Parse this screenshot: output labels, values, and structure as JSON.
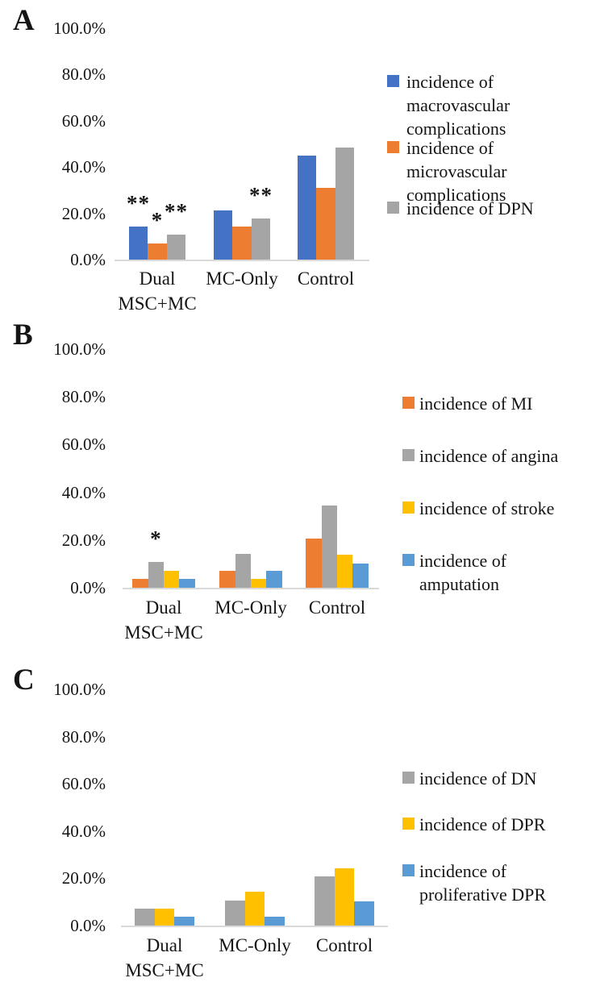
{
  "figure": {
    "background": "#ffffff",
    "colors": {
      "blue": "#4472C4",
      "orange": "#ED7D31",
      "gray": "#A5A5A5",
      "yellow": "#FFC000",
      "light_blue": "#5B9BD5",
      "axis_line": "#D9D9D9",
      "text": "#151515"
    }
  },
  "y_axis": {
    "ticks": [
      "100.0%",
      "80.0%",
      "60.0%",
      "40.0%",
      "20.0%",
      "0.0%"
    ],
    "range": [
      0,
      100
    ],
    "grid": "off"
  },
  "x_axis": {
    "categories": [
      "Dual MSC+MC",
      "MC-Only",
      "Control"
    ],
    "category_lines": [
      [
        "Dual",
        "MSC+MC"
      ],
      [
        "MC-Only"
      ],
      [
        "Control"
      ]
    ]
  },
  "chart_data": [
    {
      "panel": "A",
      "type": "bar",
      "title": "",
      "xlabel": "",
      "ylabel": "",
      "ylim": [
        0,
        100
      ],
      "legend_position": "right",
      "categories": [
        "Dual MSC+MC",
        "MC-Only",
        "Control"
      ],
      "series": [
        {
          "name": "incidence of macrovascular complications",
          "color": "#4472C4",
          "values": [
            14.3,
            21.4,
            44.8
          ]
        },
        {
          "name": "incidence of microvascular complications",
          "color": "#ED7D31",
          "values": [
            7.1,
            14.3,
            31.0
          ]
        },
        {
          "name": "incidence of DPN",
          "color": "#A5A5A5",
          "values": [
            10.7,
            17.9,
            48.3
          ]
        }
      ],
      "legend_lines": [
        [
          "incidence of",
          "macrovascular",
          "complications"
        ],
        [
          "incidence of",
          "microvascular",
          "complications"
        ],
        [
          "incidence of DPN"
        ]
      ],
      "annotations": [
        {
          "category": 0,
          "series": 0,
          "text": "**"
        },
        {
          "category": 0,
          "series": 1,
          "text": "*"
        },
        {
          "category": 0,
          "series": 2,
          "text": "**"
        },
        {
          "category": 1,
          "series": 2,
          "text": "**"
        }
      ]
    },
    {
      "panel": "B",
      "type": "bar",
      "title": "",
      "xlabel": "",
      "ylabel": "",
      "ylim": [
        0,
        100
      ],
      "legend_position": "right",
      "categories": [
        "Dual MSC+MC",
        "MC-Only",
        "Control"
      ],
      "series": [
        {
          "name": "incidence of MI",
          "color": "#ED7D31",
          "values": [
            3.6,
            7.1,
            20.7
          ]
        },
        {
          "name": "incidence of angina",
          "color": "#A5A5A5",
          "values": [
            10.7,
            14.3,
            34.5
          ]
        },
        {
          "name": "incidence of stroke",
          "color": "#FFC000",
          "values": [
            7.1,
            3.6,
            13.8
          ]
        },
        {
          "name": "incidence of amputation",
          "color": "#5B9BD5",
          "values": [
            3.6,
            7.1,
            10.3
          ]
        }
      ],
      "legend_lines": [
        [
          "incidence of MI"
        ],
        [
          "incidence of angina"
        ],
        [
          "incidence of stroke"
        ],
        [
          "incidence of",
          "amputation"
        ]
      ],
      "annotations": [
        {
          "category": 0,
          "series": 1,
          "text": "*"
        }
      ]
    },
    {
      "panel": "C",
      "type": "bar",
      "title": "",
      "xlabel": "",
      "ylabel": "",
      "ylim": [
        0,
        100
      ],
      "legend_position": "right",
      "categories": [
        "Dual MSC+MC",
        "MC-Only",
        "Control"
      ],
      "series": [
        {
          "name": "incidence of DN",
          "color": "#A5A5A5",
          "values": [
            7.1,
            10.7,
            20.7
          ]
        },
        {
          "name": "incidence of DPR",
          "color": "#FFC000",
          "values": [
            7.1,
            14.3,
            24.1
          ]
        },
        {
          "name": "incidence of proliferative DPR",
          "color": "#5B9BD5",
          "values": [
            3.6,
            3.6,
            10.3
          ]
        }
      ],
      "legend_lines": [
        [
          "incidence of DN"
        ],
        [
          "incidence of DPR"
        ],
        [
          "incidence of",
          "proliferative DPR"
        ]
      ],
      "annotations": []
    }
  ]
}
